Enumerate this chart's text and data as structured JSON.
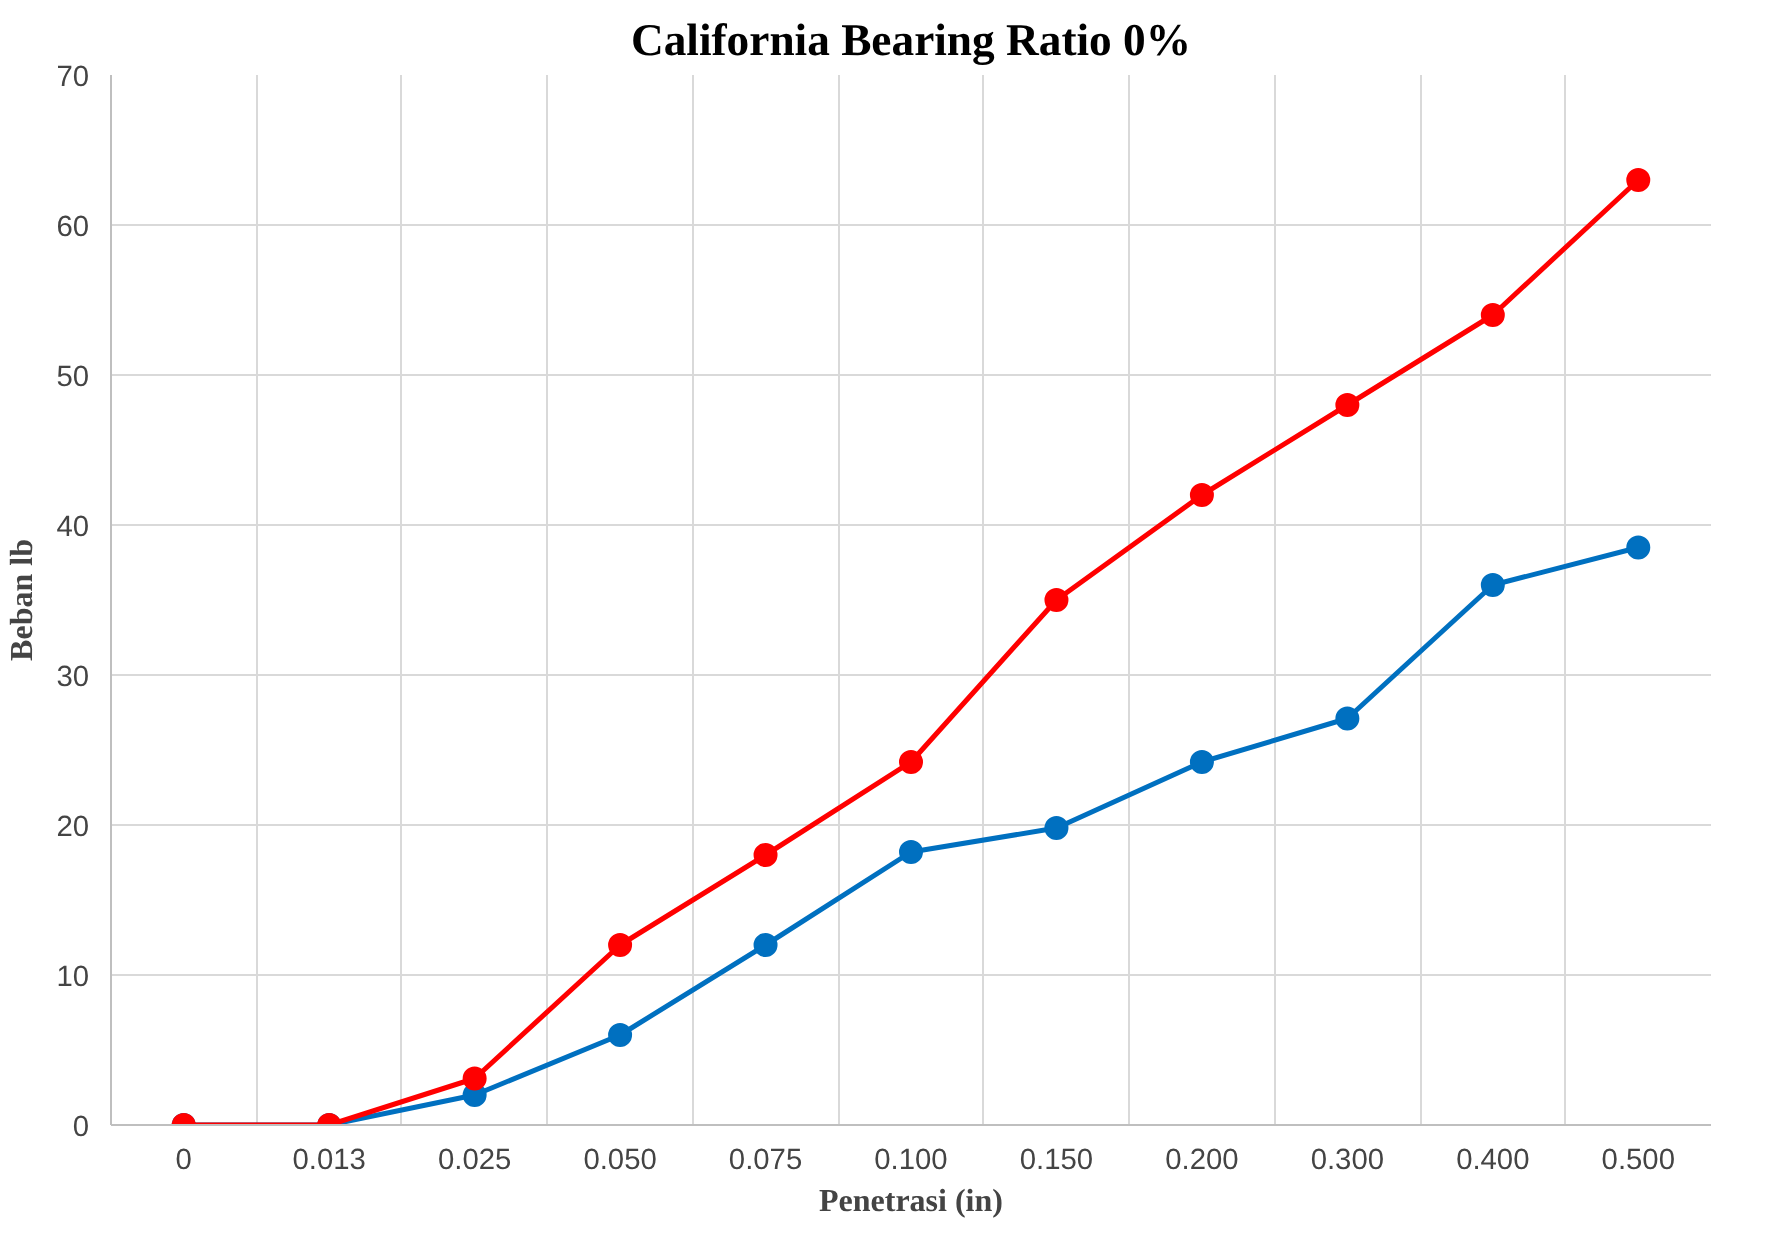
{
  "chart_data": {
    "type": "line",
    "title": "California Bearing Ratio 0%",
    "xlabel": "Penetrasi (in)",
    "ylabel": "Beban lb",
    "categories": [
      "0",
      "0.013",
      "0.025",
      "0.050",
      "0.075",
      "0.100",
      "0.150",
      "0.200",
      "0.300",
      "0.400",
      "0.500"
    ],
    "series": [
      {
        "color": "#0070c0",
        "values": [
          0,
          0,
          2,
          6,
          12,
          18.2,
          19.8,
          24.2,
          27.1,
          36,
          38.5
        ]
      },
      {
        "color": "#ff0000",
        "values": [
          0,
          0,
          3.1,
          12,
          18,
          24.2,
          35,
          42,
          48,
          54,
          63
        ]
      }
    ],
    "ylim": [
      0,
      70
    ],
    "yticks": [
      0,
      10,
      20,
      30,
      40,
      50,
      60,
      70
    ],
    "grid": true,
    "marker": "circle",
    "line_style": "solid"
  }
}
